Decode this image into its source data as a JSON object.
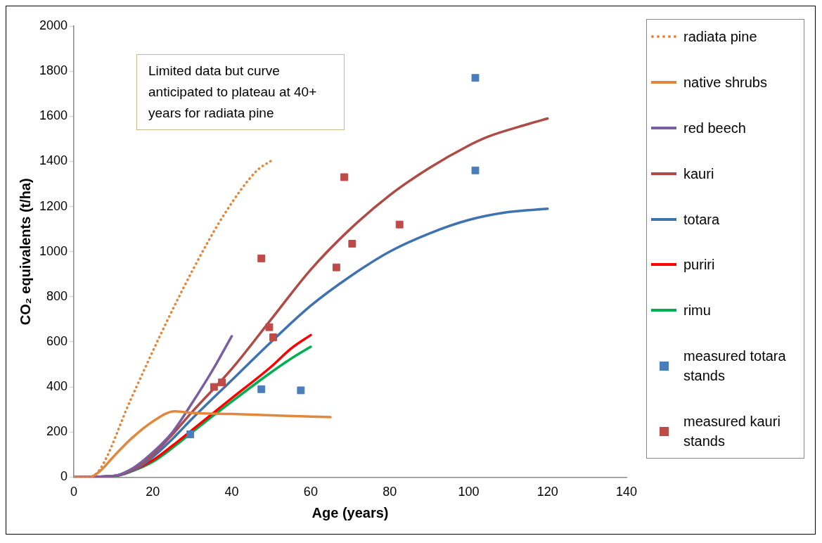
{
  "chart_data": {
    "type": "line",
    "xlabel": "Age (years)",
    "ylabel": "CO₂ equivalents (t/ha)",
    "xlim": [
      0,
      140
    ],
    "xticks": [
      0,
      20,
      40,
      60,
      80,
      100,
      120,
      140
    ],
    "ylim": [
      0,
      2000
    ],
    "yticks": [
      0,
      200,
      400,
      600,
      800,
      1000,
      1200,
      1400,
      1600,
      1800,
      2000
    ],
    "grid": false,
    "legend": "right",
    "annotations": [
      "Limited data but curve anticipated to plateau at 40+ years for radiata pine"
    ],
    "series": [
      {
        "name": "radiata pine",
        "color": "#e2883d",
        "line_style": "dotted",
        "marker": "none",
        "x": [
          0,
          3.3,
          6.5,
          14.3,
          22.4,
          30.4,
          38.2,
          46.3,
          50
        ],
        "values": [
          0,
          0,
          32,
          340,
          648,
          928,
          1168,
          1358,
          1403
        ]
      },
      {
        "name": "native shrubs",
        "color": "#e2883d",
        "line_style": "solid",
        "marker": "none",
        "x": [
          0,
          4,
          6.5,
          10,
          14.3,
          20,
          25.6,
          30,
          40,
          50,
          65
        ],
        "values": [
          0,
          0,
          25,
          90,
          167,
          247,
          292,
          285,
          280,
          274,
          266
        ]
      },
      {
        "name": "red beech",
        "color": "#7a5ea0",
        "line_style": "solid",
        "marker": "none",
        "x": [
          0,
          10,
          15,
          20,
          25,
          30,
          35,
          40
        ],
        "values": [
          0,
          5,
          40,
          110,
          200,
          330,
          470,
          625
        ]
      },
      {
        "name": "kauri",
        "color": "#b04a45",
        "line_style": "solid",
        "marker": "none",
        "x": [
          0,
          10,
          15,
          20,
          25,
          30,
          40,
          50,
          60,
          70,
          80,
          90,
          100,
          105,
          115,
          120
        ],
        "values": [
          0,
          5,
          35,
          100,
          190,
          290,
          480,
          700,
          920,
          1100,
          1250,
          1370,
          1470,
          1510,
          1565,
          1590
        ]
      },
      {
        "name": "totara",
        "color": "#3f72b1",
        "line_style": "solid",
        "marker": "none",
        "x": [
          0,
          10,
          15,
          20,
          25,
          30,
          40,
          50,
          60,
          70,
          80,
          90,
          100,
          110,
          120
        ],
        "values": [
          0,
          5,
          30,
          90,
          170,
          260,
          430,
          600,
          760,
          890,
          1000,
          1080,
          1140,
          1175,
          1190
        ]
      },
      {
        "name": "puriri",
        "color": "#ff0000",
        "line_style": "solid",
        "marker": "none",
        "x": [
          0,
          10,
          15,
          20,
          25,
          30,
          40,
          50,
          55,
          60
        ],
        "values": [
          0,
          5,
          30,
          75,
          140,
          210,
          350,
          490,
          570,
          630
        ]
      },
      {
        "name": "rimu",
        "color": "#00b050",
        "line_style": "solid",
        "marker": "none",
        "x": [
          0,
          10,
          15,
          20,
          25,
          30,
          40,
          50,
          55,
          60
        ],
        "values": [
          0,
          3,
          28,
          68,
          130,
          200,
          335,
          465,
          525,
          578
        ]
      },
      {
        "name": "measured totara stands",
        "type": "scatter",
        "color": "#4a7ebb",
        "marker": "square",
        "x": [
          29.5,
          47.5,
          57.5,
          101.7,
          101.7
        ],
        "values": [
          190,
          390,
          385,
          1770,
          1360
        ]
      },
      {
        "name": "measured kauri stands",
        "type": "scatter",
        "color": "#be4b48",
        "marker": "square",
        "x": [
          35.5,
          37.5,
          47.5,
          49.5,
          50.5,
          66.5,
          68.5,
          70.5,
          82.5
        ],
        "values": [
          400,
          420,
          970,
          665,
          620,
          930,
          1330,
          1035,
          1120
        ]
      }
    ]
  }
}
